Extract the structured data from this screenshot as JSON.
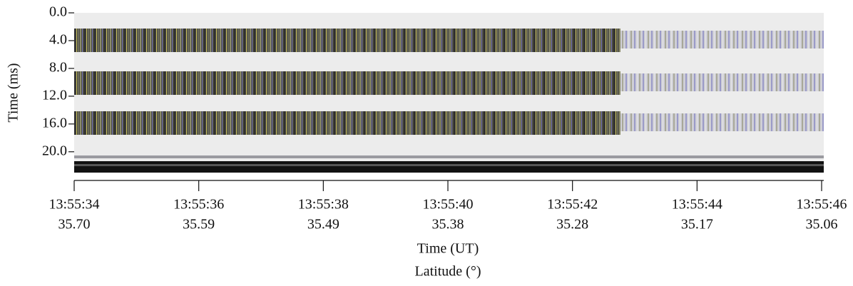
{
  "chart_data": {
    "type": "radargram",
    "ylabel": "Time (ms)",
    "ylim": [
      0,
      23
    ],
    "yticks": [
      {
        "value": 0,
        "label": "0.0"
      },
      {
        "value": 4,
        "label": "4.0"
      },
      {
        "value": 8,
        "label": "8.0"
      },
      {
        "value": 12,
        "label": "12.0"
      },
      {
        "value": 16,
        "label": "16.0"
      },
      {
        "value": 20,
        "label": "20.0"
      }
    ],
    "xlabel": "Time (UT)",
    "x2label": "Latitude (°)",
    "categories": [
      "13:55:34",
      "13:55:36",
      "13:55:38",
      "13:55:40",
      "13:55:42",
      "13:55:44",
      "13:55:46"
    ],
    "latitudes": [
      {
        "value": 35.7,
        "label": "35.70"
      },
      35.59,
      35.49,
      35.38,
      35.28,
      35.17,
      35.06
    ]
  }
}
